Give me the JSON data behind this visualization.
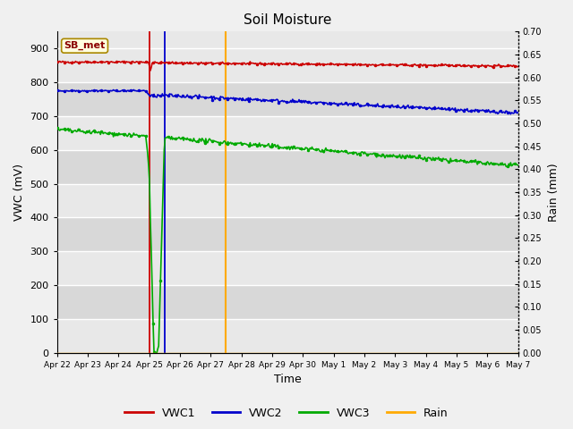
{
  "title": "Soil Moisture",
  "xlabel": "Time",
  "ylabel_left": "VWC (mV)",
  "ylabel_right": "Rain (mm)",
  "ylim_left": [
    0,
    950
  ],
  "ylim_right": [
    0,
    0.7
  ],
  "yticks_left": [
    0,
    100,
    200,
    300,
    400,
    500,
    600,
    700,
    800,
    900
  ],
  "yticks_right": [
    0.0,
    0.05,
    0.1,
    0.15,
    0.2,
    0.25,
    0.3,
    0.35,
    0.4,
    0.45,
    0.5,
    0.55,
    0.6,
    0.65,
    0.7
  ],
  "fig_bg": "#f0f0f0",
  "plot_bg_light": "#e8e8e8",
  "plot_bg_dark": "#d8d8d8",
  "colors": {
    "VWC1": "#cc0000",
    "VWC2": "#0000cc",
    "VWC3": "#00aa00",
    "Rain": "#ffaa00"
  },
  "vline_red_x": 3.0,
  "vline_blue_x": 3.5,
  "vline_orange_x": 5.5,
  "xtick_positions": [
    0,
    1,
    2,
    3,
    4,
    5,
    6,
    7,
    8,
    9,
    10,
    11,
    12,
    13,
    14,
    15
  ],
  "xtick_labels": [
    "Apr 22",
    "Apr 23",
    "Apr 24",
    "Apr 25",
    "Apr 26",
    "Apr 27",
    "Apr 28",
    "Apr 29",
    "Apr 30",
    "May 1",
    "May 2",
    "May 3",
    "May 4",
    "May 5",
    "May 6",
    "May 7"
  ]
}
